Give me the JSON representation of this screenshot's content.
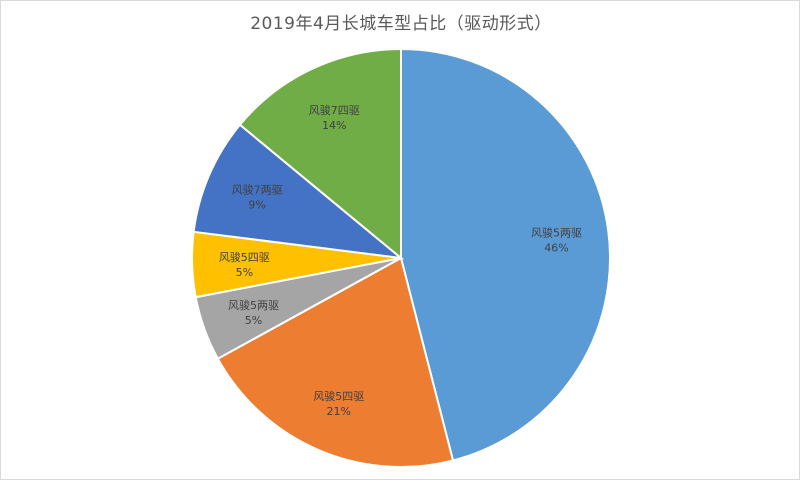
{
  "chart_data": {
    "type": "pie",
    "title": "2019年4月长城车型占比（驱动形式）",
    "slices": [
      {
        "label": "风骏5两驱",
        "value": 46,
        "value_label": "46%",
        "color": "#5b9bd5"
      },
      {
        "label": "风骏5四驱",
        "value": 21,
        "value_label": "21%",
        "color": "#ed7d31"
      },
      {
        "label": "风骏5两驱",
        "value": 5,
        "value_label": "5%",
        "color": "#a5a5a5"
      },
      {
        "label": "风骏5四驱",
        "value": 5,
        "value_label": "5%",
        "color": "#ffc000"
      },
      {
        "label": "风骏7两驱",
        "value": 9,
        "value_label": "9%",
        "color": "#4472c4"
      },
      {
        "label": "风骏7四驱",
        "value": 14,
        "value_label": "14%",
        "color": "#70ad47"
      }
    ],
    "legend": "none",
    "start_angle": "12 o'clock",
    "direction": "clockwise"
  }
}
